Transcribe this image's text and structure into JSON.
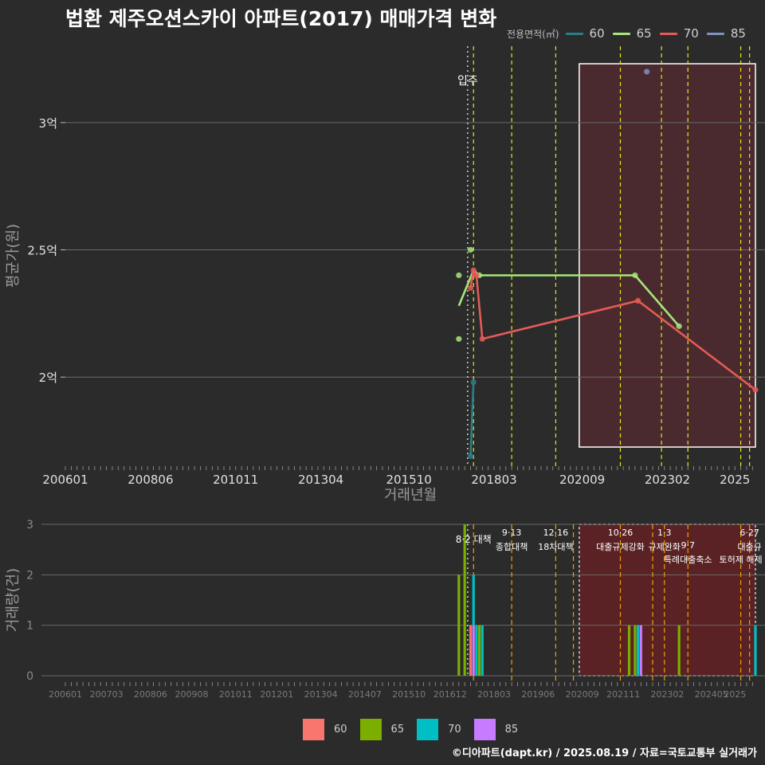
{
  "title": "법환 제주오션스카이 아파트(2017) 매매가격 변화",
  "caption": "©디아파트(dapt.kr) / 2025.08.19 / 자료=국토교통부 실거래가",
  "colors": {
    "background": "#2b2b2b",
    "grid": "#6a6a6a",
    "policy_line": "#e6e619",
    "policy_line_bottom": "#f0a000",
    "highlight_fill": "#4a2a2e",
    "highlight_fill_bottom": "#5a2224",
    "line_60": "#2a7f86",
    "line_65": "#a6e67a",
    "line_70": "#e35b56",
    "line_85": "#8091c0",
    "bar_60": "#f8766d",
    "bar_65": "#7cae00",
    "bar_70": "#00bfc4",
    "bar_85": "#c77cff"
  },
  "chart_data": [
    {
      "type": "line",
      "name": "price_chart",
      "xlabel": "거래년월",
      "ylabel": "평균가(원)",
      "x_range": [
        "2006-01",
        "2025-08"
      ],
      "y_range": [
        1.65,
        3.3
      ],
      "y_unit": "억",
      "x_tick_labels": [
        "200601",
        "200806",
        "201011",
        "201304",
        "201510",
        "201803",
        "202009",
        "202302",
        "2025"
      ],
      "y_tick_labels": [
        "2억",
        "2.5억",
        "3억"
      ],
      "y_tick_values": [
        2.0,
        2.5,
        3.0
      ],
      "grid": true,
      "legend": {
        "title": "전용면적(㎡)",
        "position": "top-right",
        "entries": [
          "60",
          "65",
          "70",
          "85"
        ]
      },
      "annotations": [
        {
          "label": "입주",
          "x": "2017-06"
        }
      ],
      "policy_dates": [
        "2017-08",
        "2018-09",
        "2019-12",
        "2021-10",
        "2022-12",
        "2023-09",
        "2025-03",
        "2025-06"
      ],
      "highlight_range": [
        "2020-08",
        "2025-08"
      ],
      "series": [
        {
          "name": "60",
          "color": "#2a7f86",
          "line": [
            [
              "2017-07",
              1.69
            ],
            [
              "2017-08",
              1.98
            ]
          ],
          "points": [
            [
              "2017-07",
              1.69
            ],
            [
              "2017-08",
              1.98
            ]
          ]
        },
        {
          "name": "65",
          "color": "#a6e67a",
          "line": [
            [
              "2017-03",
              2.28
            ],
            [
              "2017-08",
              2.42
            ],
            [
              "2017-10",
              2.4
            ],
            [
              "2022-03",
              2.4
            ],
            [
              "2023-06",
              2.2
            ]
          ],
          "points": [
            [
              "2017-03",
              2.15
            ],
            [
              "2017-03",
              2.4
            ],
            [
              "2017-07",
              2.5
            ],
            [
              "2017-10",
              2.4
            ],
            [
              "2022-03",
              2.4
            ],
            [
              "2023-06",
              2.2
            ]
          ]
        },
        {
          "name": "70",
          "color": "#e35b56",
          "line": [
            [
              "2017-07",
              2.35
            ],
            [
              "2017-08",
              2.42
            ],
            [
              "2017-09",
              2.4
            ],
            [
              "2017-11",
              2.15
            ],
            [
              "2022-04",
              2.3
            ],
            [
              "2025-08",
              1.95
            ]
          ],
          "points": [
            [
              "2017-07",
              2.35
            ],
            [
              "2017-08",
              2.42
            ],
            [
              "2017-09",
              2.4
            ],
            [
              "2017-11",
              2.15
            ],
            [
              "2022-04",
              2.3
            ],
            [
              "2025-08",
              1.95
            ]
          ]
        },
        {
          "name": "85",
          "color": "#8091c0",
          "line": [],
          "points": [
            [
              "2022-07",
              3.2
            ]
          ]
        }
      ]
    },
    {
      "type": "bar",
      "name": "volume_chart",
      "ylabel": "거래량(건)",
      "x_range": [
        "2006-01",
        "2025-08"
      ],
      "y_range": [
        0,
        3
      ],
      "y_tick_labels": [
        "0",
        "1",
        "2",
        "3"
      ],
      "y_tick_values": [
        0,
        1,
        2,
        3
      ],
      "x_tick_labels": [
        "200601",
        "200703",
        "200806",
        "200908",
        "201011",
        "201201",
        "201304",
        "201407",
        "201510",
        "201612",
        "201803",
        "201906",
        "202009",
        "202111",
        "202302",
        "202405",
        "2025"
      ],
      "grid": true,
      "legend": {
        "position": "bottom",
        "entries": [
          "60",
          "65",
          "70",
          "85"
        ]
      },
      "highlight_range": [
        "2020-08",
        "2025-08"
      ],
      "policy_dates": [
        "2017-08",
        "2018-09",
        "2019-12",
        "2020-06",
        "2021-10",
        "2022-09",
        "2023-01",
        "2023-09",
        "2025-03",
        "2025-06"
      ],
      "annotations": [
        {
          "date_label": "8·2",
          "text": "대책",
          "x": "2017-08"
        },
        {
          "date_label": "9·13",
          "text": "종합대책",
          "x": "2018-09"
        },
        {
          "date_label": "12·16",
          "text": "18차대책",
          "x": "2019-12"
        },
        {
          "date_label": "10·26",
          "text": "대출규제강화",
          "x": "2021-10"
        },
        {
          "date_label": "1·3",
          "text": "규제완화",
          "x": "2023-01"
        },
        {
          "date_label": "9·7",
          "text": "특례대출축소",
          "x": "2023-09"
        },
        {
          "date_label": "",
          "text": "토허제 해제",
          "x": "2025-03"
        },
        {
          "date_label": "6·27",
          "text": "대출규",
          "x": "2025-06"
        }
      ],
      "bars": [
        {
          "x": "2017-03",
          "series": "65",
          "value": 2
        },
        {
          "x": "2017-05",
          "series": "65",
          "value": 3
        },
        {
          "x": "2017-07",
          "series": "60",
          "value": 1
        },
        {
          "x": "2017-08",
          "series": "85",
          "value": 1
        },
        {
          "x": "2017-08",
          "series": "70",
          "value": 1
        },
        {
          "x": "2017-09",
          "series": "70",
          "value": 1
        },
        {
          "x": "2017-10",
          "series": "65",
          "value": 1
        },
        {
          "x": "2017-11",
          "series": "70",
          "value": 1
        },
        {
          "x": "2022-01",
          "series": "65",
          "value": 1
        },
        {
          "x": "2022-03",
          "series": "65",
          "value": 1
        },
        {
          "x": "2022-04",
          "series": "70",
          "value": 1
        },
        {
          "x": "2022-05",
          "series": "85",
          "value": 1
        },
        {
          "x": "2023-06",
          "series": "65",
          "value": 1
        },
        {
          "x": "2025-08",
          "series": "70",
          "value": 1
        }
      ]
    }
  ]
}
